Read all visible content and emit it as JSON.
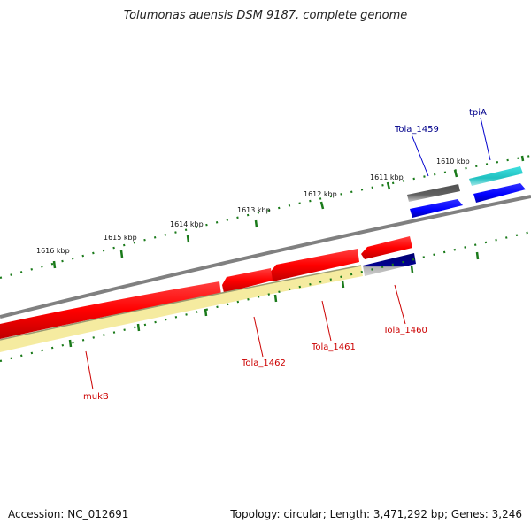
{
  "title": "Tolumonas auensis DSM 9187, complete genome",
  "footer": {
    "accession": "Accession: NC_012691",
    "topology": "Topology: circular; Length: 3,471,292 bp; Genes: 3,246"
  },
  "kbp_labels": [
    "1610 kbp",
    "1611 kbp",
    "1612 kbp",
    "1613 kbp",
    "1614 kbp",
    "1615 kbp",
    "1616 kbp"
  ],
  "gene_labels": [
    {
      "id": "Tola_1459",
      "text": "Tola_1459",
      "color": "#00008b"
    },
    {
      "id": "tpiA",
      "text": "tpiA",
      "color": "#00008b"
    },
    {
      "id": "Tola_1460",
      "text": "Tola_1460",
      "color": "#cc0000"
    },
    {
      "id": "Tola_1461",
      "text": "Tola_1461",
      "color": "#cc0000"
    },
    {
      "id": "Tola_1462",
      "text": "Tola_1462",
      "color": "#cc0000"
    },
    {
      "id": "mukB",
      "text": "mukB",
      "color": "#cc0000"
    }
  ],
  "colors": {
    "tick": "#1a7a1a",
    "backbone": "#808080",
    "cds_red": "#ff0000",
    "cds_blue": "#0000ff",
    "cds_teal": "#20c0c0",
    "cds_dark": "#606060",
    "cds_navy": "#000080",
    "feature_yellow": "#f5eba0"
  }
}
